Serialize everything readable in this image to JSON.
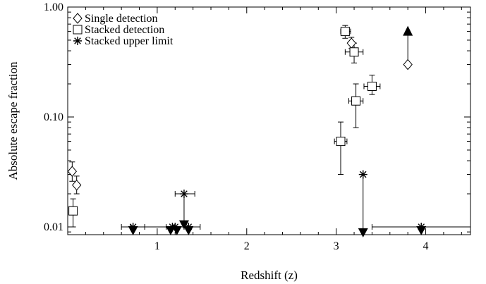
{
  "chart_data": {
    "type": "scatter",
    "title": "",
    "xlabel": "Redshift (z)",
    "ylabel": "Absolute escape fraction",
    "xlim": [
      0,
      4.5
    ],
    "ylim": [
      0.0085,
      1.0
    ],
    "yscale": "log",
    "grid": false,
    "legend_position": "top-left",
    "x_ticks": [
      {
        "value": 1,
        "label": "1"
      },
      {
        "value": 2,
        "label": "2"
      },
      {
        "value": 3,
        "label": "3"
      },
      {
        "value": 4,
        "label": "4"
      }
    ],
    "y_ticks": [
      {
        "value": 0.01,
        "label": "0.01"
      },
      {
        "value": 0.1,
        "label": "0.10"
      },
      {
        "value": 1.0,
        "label": "1.00"
      }
    ],
    "series": [
      {
        "name": "Single detection",
        "marker": "diamond",
        "points": [
          {
            "x": 0.05,
            "y": 0.032,
            "ylo": 0.026,
            "yhi": 0.039
          },
          {
            "x": 0.1,
            "y": 0.024,
            "ylo": 0.02,
            "yhi": 0.029
          },
          {
            "x": 3.17,
            "y": 0.47,
            "ylo": 0.42,
            "yhi": 0.53
          },
          {
            "x": 3.8,
            "y": 0.3,
            "arrow_to": 0.6
          }
        ]
      },
      {
        "name": "Stacked detection",
        "marker": "square",
        "points": [
          {
            "x": 0.06,
            "y": 0.014,
            "ylo": 0.01,
            "yhi": 0.018
          },
          {
            "x": 3.05,
            "y": 0.06,
            "ylo": 0.03,
            "yhi": 0.09,
            "xlo": 2.98,
            "xhi": 3.12
          },
          {
            "x": 3.1,
            "y": 0.6,
            "ylo": 0.52,
            "yhi": 0.68,
            "xlo": 3.05,
            "xhi": 3.16
          },
          {
            "x": 3.2,
            "y": 0.39,
            "ylo": 0.31,
            "yhi": 0.47,
            "xlo": 3.1,
            "xhi": 3.3
          },
          {
            "x": 3.22,
            "y": 0.14,
            "ylo": 0.08,
            "yhi": 0.2,
            "xlo": 3.14,
            "xhi": 3.3
          },
          {
            "x": 3.4,
            "y": 0.19,
            "ylo": 0.16,
            "yhi": 0.24,
            "xlo": 3.31,
            "xhi": 3.49
          }
        ]
      },
      {
        "name": "Stacked upper limit",
        "marker": "asterisk",
        "points": [
          {
            "x": 0.73,
            "y": 0.01,
            "xlo": 0.6,
            "xhi": 0.86
          },
          {
            "x": 1.17,
            "y": 0.01,
            "xlo": 0.7,
            "xhi": 1.35
          },
          {
            "x": 1.2,
            "y": 0.01,
            "xlo": 1.1,
            "xhi": 1.3
          },
          {
            "x": 1.3,
            "y": 0.02,
            "xlo": 1.2,
            "xhi": 1.42,
            "arrow_to": 0.011
          },
          {
            "x": 1.35,
            "y": 0.01,
            "xlo": 1.2,
            "xhi": 1.48
          },
          {
            "x": 3.3,
            "y": 0.03
          },
          {
            "x": 3.95,
            "y": 0.01,
            "xlo": 3.4,
            "xhi": 4.5
          }
        ]
      }
    ],
    "upper_limit_arrows": [
      {
        "x": 0.73,
        "y": 0.0093
      },
      {
        "x": 1.15,
        "y": 0.0093
      },
      {
        "x": 1.22,
        "y": 0.0093
      },
      {
        "x": 1.35,
        "y": 0.0093
      },
      {
        "x": 1.3,
        "y": 0.0105
      },
      {
        "x": 3.3,
        "y": 0.0089
      },
      {
        "x": 3.95,
        "y": 0.0093
      }
    ]
  }
}
